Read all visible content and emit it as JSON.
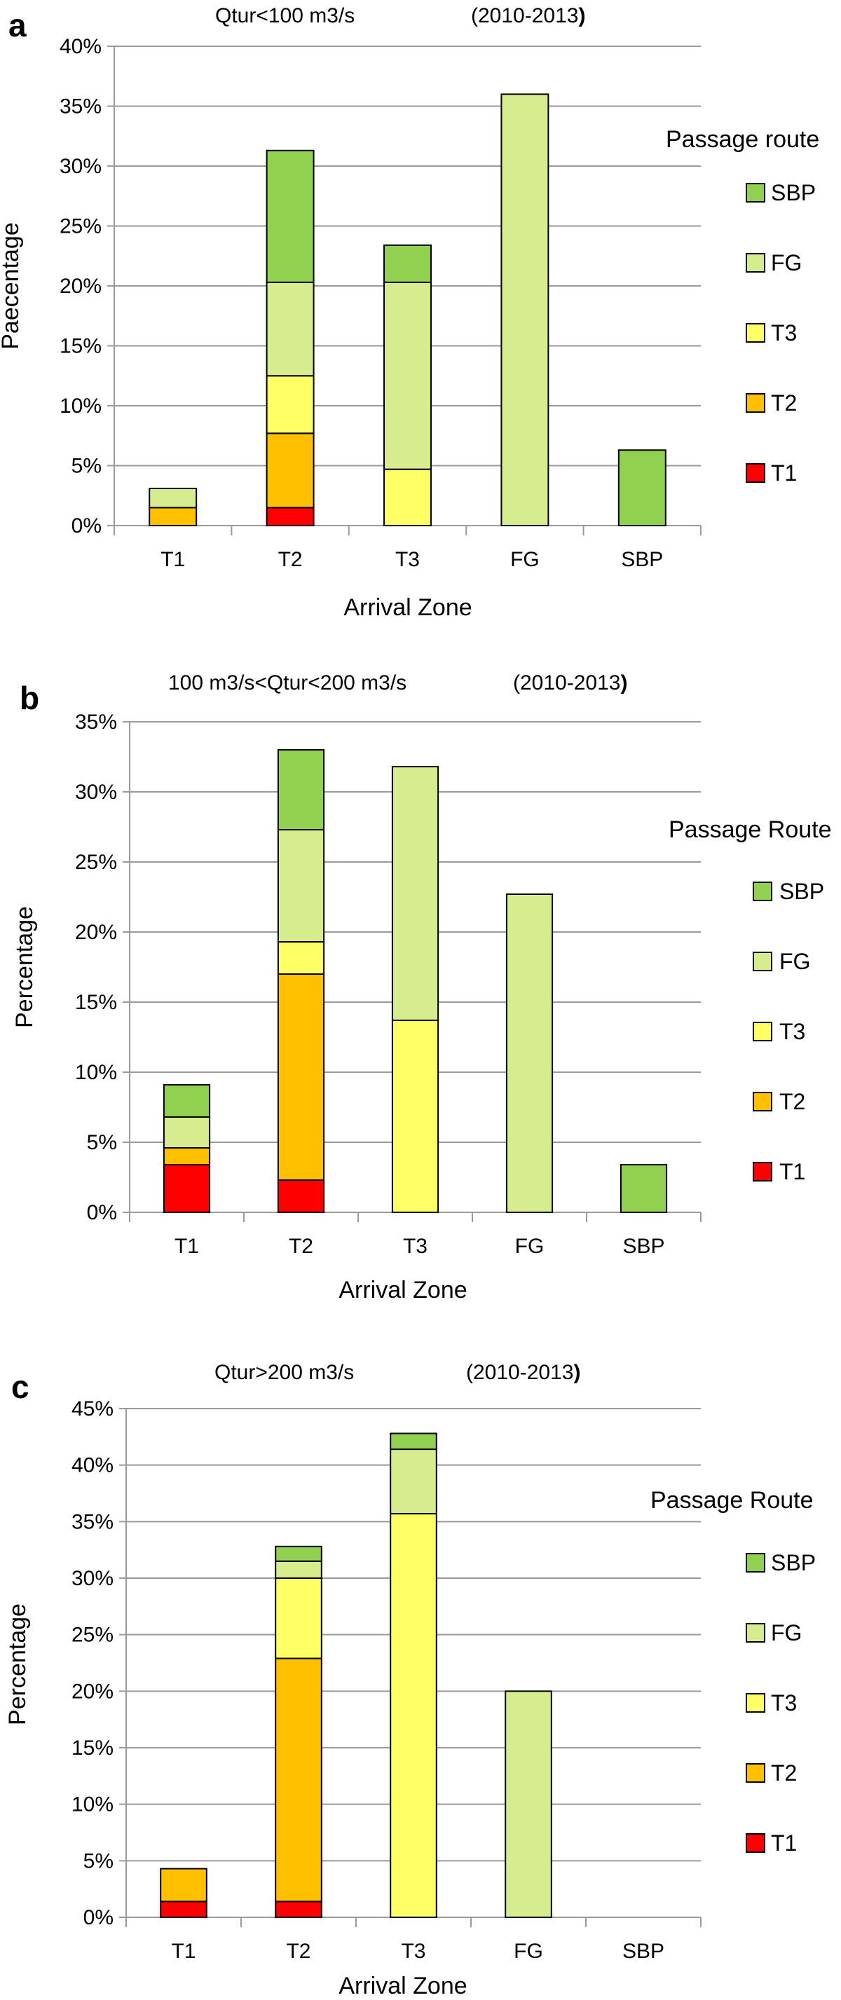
{
  "colors": {
    "T1": "#ff0000",
    "T2": "#ffc000",
    "T3": "#ffff66",
    "FG": "#d7ec8f",
    "SBP": "#92d050",
    "grid": "#9a9a9a",
    "bar_stroke": "#000000"
  },
  "chart_data": [
    {
      "type": "bar",
      "stacked": true,
      "panel_letter": "a",
      "title": "Qtur<100 m3/s",
      "title_period": "(2010-2013",
      "title_period_close": ")",
      "xlabel": "Arrival Zone",
      "ylabel": "Paecentage",
      "ylim": [
        0,
        40
      ],
      "ytick_step": 5,
      "ytick_labels": [
        "0%",
        "5%",
        "10%",
        "15%",
        "20%",
        "25%",
        "30%",
        "35%",
        "40%"
      ],
      "categories": [
        "T1",
        "T2",
        "T3",
        "FG",
        "SBP"
      ],
      "legend_title": "Passage  route",
      "series": [
        {
          "name": "T1",
          "values": [
            0,
            1.5,
            0,
            0,
            0
          ]
        },
        {
          "name": "T2",
          "values": [
            1.5,
            6.2,
            0,
            0,
            0
          ]
        },
        {
          "name": "T3",
          "values": [
            0,
            4.8,
            4.7,
            0,
            0
          ]
        },
        {
          "name": "FG",
          "values": [
            1.6,
            7.8,
            15.6,
            36.0,
            0
          ]
        },
        {
          "name": "SBP",
          "values": [
            0,
            11.0,
            3.1,
            0,
            6.3
          ]
        }
      ]
    },
    {
      "type": "bar",
      "stacked": true,
      "panel_letter": "b",
      "title": "100 m3/s<Qtur<200 m3/s",
      "title_period": "(2010-2013",
      "title_period_close": ")",
      "xlabel": "Arrival Zone",
      "ylabel": "Percentage",
      "ylim": [
        0,
        35
      ],
      "ytick_step": 5,
      "ytick_labels": [
        "0%",
        "5%",
        "10%",
        "15%",
        "20%",
        "25%",
        "30%",
        "35%"
      ],
      "categories": [
        "T1",
        "T2",
        "T3",
        "FG",
        "SBP"
      ],
      "legend_title": "Passage Route",
      "series": [
        {
          "name": "T1",
          "values": [
            3.4,
            2.3,
            0,
            0,
            0
          ]
        },
        {
          "name": "T2",
          "values": [
            1.2,
            14.7,
            0,
            0,
            0
          ]
        },
        {
          "name": "T3",
          "values": [
            0,
            2.3,
            13.7,
            0,
            0
          ]
        },
        {
          "name": "FG",
          "values": [
            2.2,
            8.0,
            18.1,
            22.7,
            0
          ]
        },
        {
          "name": "SBP",
          "values": [
            2.3,
            5.7,
            0,
            0,
            3.4
          ]
        }
      ]
    },
    {
      "type": "bar",
      "stacked": true,
      "panel_letter": "c",
      "title": "Qtur>200 m3/s",
      "title_period": "(2010-2013",
      "title_period_close": ")",
      "xlabel": "Arrival Zone",
      "ylabel": "Percentage",
      "ylim": [
        0,
        45
      ],
      "ytick_step": 5,
      "ytick_labels": [
        "0%",
        "5%",
        "10%",
        "15%",
        "20%",
        "25%",
        "30%",
        "35%",
        "40%",
        "45%"
      ],
      "categories": [
        "T1",
        "T2",
        "T3",
        "FG",
        "SBP"
      ],
      "legend_title": "Passage Route",
      "series": [
        {
          "name": "T1",
          "values": [
            1.4,
            1.4,
            0,
            0,
            0
          ]
        },
        {
          "name": "T2",
          "values": [
            2.9,
            21.5,
            0,
            0,
            0
          ]
        },
        {
          "name": "T3",
          "values": [
            0,
            7.1,
            35.7,
            0,
            0
          ]
        },
        {
          "name": "FG",
          "values": [
            0,
            1.5,
            5.7,
            20.0,
            0
          ]
        },
        {
          "name": "SBP",
          "values": [
            0,
            1.3,
            1.4,
            0,
            0
          ]
        }
      ]
    }
  ]
}
